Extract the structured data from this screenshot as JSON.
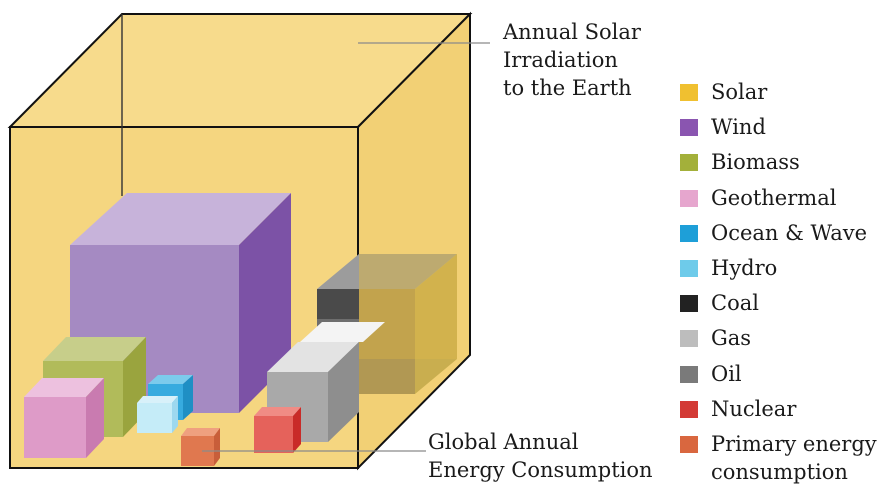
{
  "callouts": {
    "solar_irradiation": [
      "Annual Solar",
      "Irradiation",
      "to the Earth"
    ],
    "global_consumption": [
      "Global Annual",
      "Energy Consumption"
    ]
  },
  "legend": [
    {
      "label": "Solar",
      "color": "#F0C030"
    },
    {
      "label": "Wind",
      "color": "#8A55B0"
    },
    {
      "label": "Biomass",
      "color": "#A3B03A"
    },
    {
      "label": "Geothermal",
      "color": "#E6A6CE"
    },
    {
      "label": "Ocean & Wave",
      "color": "#1E9FD8"
    },
    {
      "label": "Hydro",
      "color": "#6ECBEA"
    },
    {
      "label": "Coal",
      "color": "#222222"
    },
    {
      "label": "Gas",
      "color": "#BDBDBD"
    },
    {
      "label": "Oil",
      "color": "#7A7A7A"
    },
    {
      "label": "Nuclear",
      "color": "#D33A35"
    },
    {
      "label": "Primary energy consumption",
      "label_lines": [
        "Primary energy",
        "consumption"
      ],
      "color": "#D9673F"
    }
  ]
}
